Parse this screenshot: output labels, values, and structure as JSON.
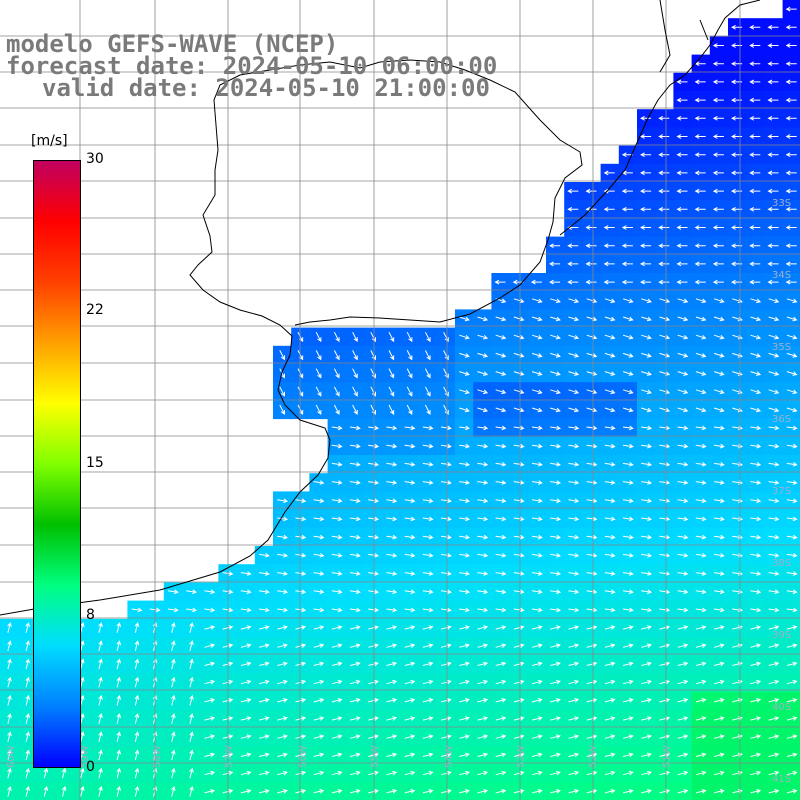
{
  "title": {
    "line1": "modelo GEFS-WAVE (NCEP)",
    "line2": "forecast date: 2024-05-10 06:00:00",
    "line3": "valid date: 2024-05-10 21:00:00"
  },
  "colorbar": {
    "units": "[m/s]",
    "ticks": [
      "30",
      "22",
      "15",
      "8",
      "0"
    ],
    "tick_values": [
      30,
      22,
      15,
      8,
      0
    ],
    "range": [
      0,
      30
    ],
    "colors": [
      "#0000ff",
      "#0080ff",
      "#00ddff",
      "#00ff80",
      "#00c000",
      "#80ff00",
      "#ffff00",
      "#ffa000",
      "#ff4000",
      "#ff0000",
      "#c00060"
    ]
  },
  "map": {
    "land_color": "#ffffff",
    "coastline_color": "#000000",
    "grid_color": "#888888",
    "arrow_color": "#ffffff",
    "lat_labels": [
      "33S",
      "34S",
      "35S",
      "36S",
      "37S",
      "38S",
      "39S",
      "40S",
      "41S"
    ],
    "lon_labels": [
      "60W",
      "59W",
      "58W",
      "57W",
      "56W",
      "55W",
      "54W",
      "53W",
      "52W",
      "51W"
    ],
    "variable": "wind speed"
  }
}
